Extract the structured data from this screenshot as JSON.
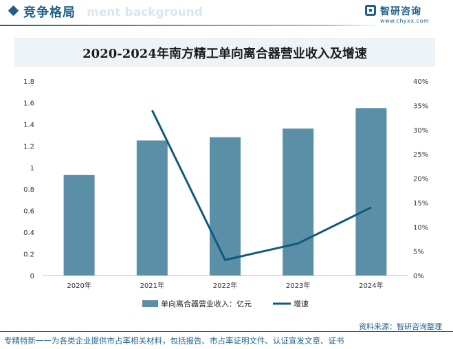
{
  "header": {
    "title": "竞争格局",
    "watermark_text": "ment background"
  },
  "brand": {
    "name": "智研咨询",
    "url": "www.chyxx.com"
  },
  "source_text": "资料来源：智研咨询整理",
  "footer_text": "专精特新一一为各类企业提供市占率相关材料，包括报告、市占率证明文件、认证宣发文章、证书",
  "colors": {
    "bar": "#5b8fa8",
    "line": "#0d5a7c",
    "accent": "#1f5f8b"
  },
  "chart_data": {
    "type": "bar",
    "title": "2020-2024年南方精工单向离合器营业收入及增速",
    "categories": [
      "2020年",
      "2021年",
      "2022年",
      "2023年",
      "2024年"
    ],
    "series": [
      {
        "name": "单向离合器营业收入：亿元",
        "type": "bar",
        "axis": "left",
        "values": [
          0.93,
          1.25,
          1.28,
          1.36,
          1.55
        ]
      },
      {
        "name": "增速",
        "type": "line",
        "axis": "right",
        "values": [
          null,
          34.0,
          3.2,
          6.6,
          14.0
        ]
      }
    ],
    "y_left": {
      "range": [
        0,
        1.8
      ],
      "ticks": [
        0,
        0.2,
        0.4,
        0.6,
        0.8,
        1,
        1.2,
        1.4,
        1.6,
        1.8
      ],
      "tick_labels": [
        "0",
        "0.2",
        "0.4",
        "0.6",
        "0.8",
        "1",
        "1.2",
        "1.4",
        "1.6",
        "1.8"
      ]
    },
    "y_right": {
      "range": [
        0,
        40
      ],
      "ticks": [
        0,
        5,
        10,
        15,
        20,
        25,
        30,
        35,
        40
      ],
      "tick_labels": [
        "0%",
        "5%",
        "10%",
        "15%",
        "20%",
        "25%",
        "30%",
        "35%",
        "40%"
      ]
    },
    "grid": false,
    "legend_position": "bottom"
  }
}
